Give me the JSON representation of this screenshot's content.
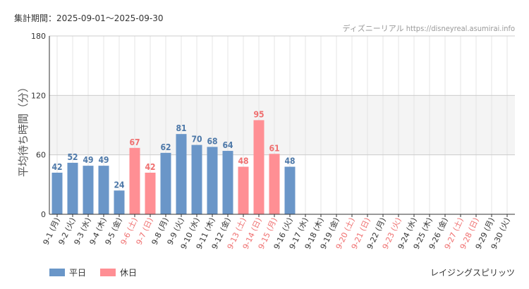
{
  "header": {
    "period": "集計期間：2025-09-01〜2025-09-30",
    "source": "ディズニーリアル https://disneyreal.asumirai.info"
  },
  "footer": {
    "attraction": "レイジングスピリッツ"
  },
  "colors": {
    "weekday": "#6a96c8",
    "holiday": "#ff8f94",
    "holiday_text": "#ef6f6f",
    "weekday_label": "#4d78a8",
    "band": "#f4f4f4",
    "grid": "#e4e4e4",
    "axis": "#333333"
  },
  "chart_data": {
    "type": "bar",
    "ylabel": "平均待ち時間（分）",
    "ylim": [
      0,
      180
    ],
    "yticks": [
      0,
      60,
      120,
      180
    ],
    "band": [
      60,
      120
    ],
    "grid": true,
    "legend": {
      "placement": "bottom-left",
      "entries": [
        "平日",
        "休日"
      ]
    },
    "categories": [
      "9-1 (月)",
      "9-2 (火)",
      "9-3 (水)",
      "9-4 (木)",
      "9-5 (金)",
      "9-6 (土)",
      "9-7 (日)",
      "9-8 (月)",
      "9-9 (火)",
      "9-10 (水)",
      "9-11 (木)",
      "9-12 (金)",
      "9-13 (土)",
      "9-14 (日)",
      "9-15 (月)",
      "9-16 (火)",
      "9-17 (水)",
      "9-18 (木)",
      "9-19 (金)",
      "9-20 (土)",
      "9-21 (日)",
      "9-22 (月)",
      "9-23 (火)",
      "9-24 (水)",
      "9-25 (木)",
      "9-26 (金)",
      "9-27 (土)",
      "9-28 (日)",
      "9-29 (月)",
      "9-30 (火)"
    ],
    "values": [
      42,
      52,
      49,
      49,
      24,
      67,
      42,
      62,
      81,
      70,
      68,
      64,
      48,
      95,
      61,
      48,
      null,
      null,
      null,
      null,
      null,
      null,
      null,
      null,
      null,
      null,
      null,
      null,
      null,
      null
    ],
    "day_type": [
      "weekday",
      "weekday",
      "weekday",
      "weekday",
      "weekday",
      "holiday",
      "holiday",
      "weekday",
      "weekday",
      "weekday",
      "weekday",
      "weekday",
      "holiday",
      "holiday",
      "holiday",
      "weekday",
      "weekday",
      "weekday",
      "weekday",
      "holiday",
      "holiday",
      "weekday",
      "holiday",
      "weekday",
      "weekday",
      "weekday",
      "holiday",
      "holiday",
      "weekday",
      "weekday"
    ]
  }
}
